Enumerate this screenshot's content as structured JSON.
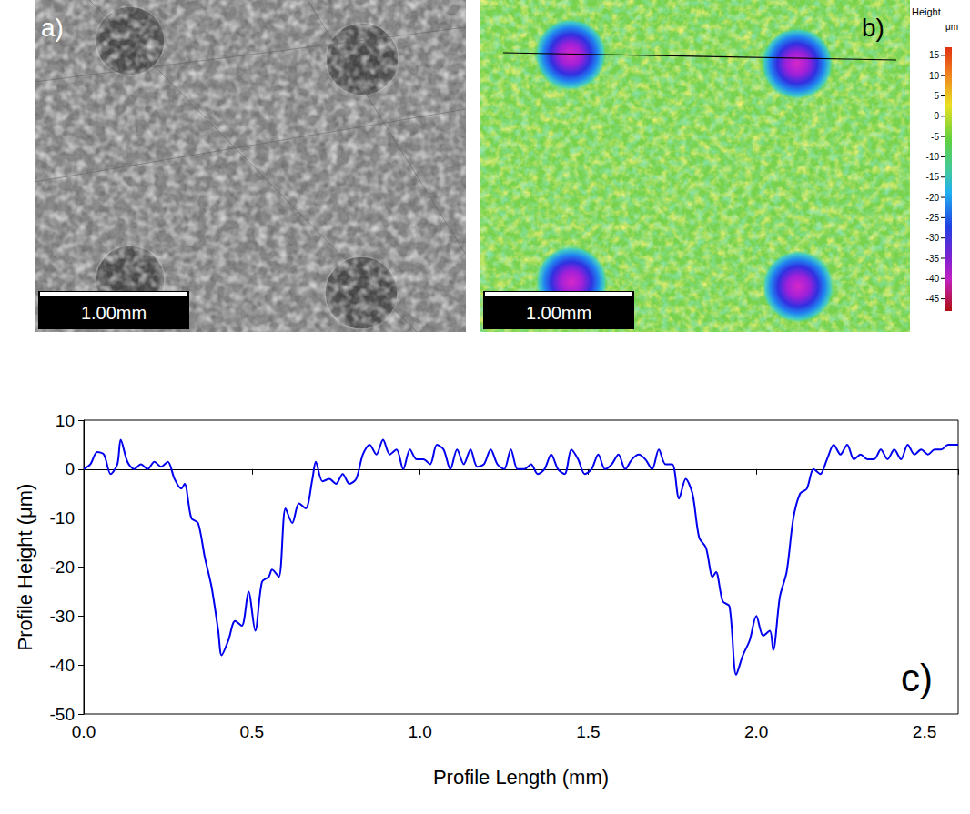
{
  "panels": [
    {
      "letter": "a)",
      "scale_bar": "1.00mm"
    },
    {
      "letter": "b)",
      "scale_bar": "1.00mm",
      "colorbar": {
        "title": "Height",
        "unit": "μm",
        "range": [
          -48,
          17
        ],
        "ticks": [
          15,
          10,
          5,
          0,
          -5,
          -10,
          -15,
          -20,
          -25,
          -30,
          -35,
          -40,
          -45
        ]
      }
    }
  ],
  "chart_data": {
    "type": "line",
    "panel_label": "c)",
    "x_label": "Profile Length (mm)",
    "y_label": "Profile Height (μm)",
    "xlim": [
      0,
      2.6
    ],
    "xticks": [
      {
        "value": 0,
        "label": "0.0"
      },
      0.5,
      {
        "value": 1,
        "label": "1.0"
      },
      1.5,
      {
        "value": 2,
        "label": "2.0"
      },
      2.5
    ],
    "ylim": [
      -50,
      10
    ],
    "yticks": [
      -50,
      -40,
      -30,
      -20,
      -10,
      0,
      10
    ],
    "grid": false,
    "color": "#0000ee",
    "x": [
      0.0,
      0.02,
      0.04,
      0.06,
      0.08,
      0.1,
      0.11,
      0.13,
      0.15,
      0.17,
      0.19,
      0.21,
      0.23,
      0.25,
      0.27,
      0.29,
      0.3,
      0.32,
      0.34,
      0.36,
      0.38,
      0.4,
      0.41,
      0.43,
      0.45,
      0.47,
      0.49,
      0.51,
      0.53,
      0.55,
      0.56,
      0.58,
      0.6,
      0.62,
      0.64,
      0.66,
      0.68,
      0.69,
      0.71,
      0.73,
      0.75,
      0.77,
      0.79,
      0.81,
      0.83,
      0.85,
      0.87,
      0.89,
      0.91,
      0.93,
      0.95,
      0.97,
      0.99,
      1.01,
      1.03,
      1.05,
      1.07,
      1.09,
      1.11,
      1.13,
      1.15,
      1.17,
      1.19,
      1.21,
      1.23,
      1.25,
      1.27,
      1.29,
      1.31,
      1.33,
      1.35,
      1.37,
      1.39,
      1.41,
      1.43,
      1.45,
      1.47,
      1.49,
      1.51,
      1.53,
      1.55,
      1.57,
      1.59,
      1.61,
      1.63,
      1.65,
      1.67,
      1.69,
      1.71,
      1.73,
      1.75,
      1.77,
      1.79,
      1.81,
      1.83,
      1.85,
      1.87,
      1.88,
      1.9,
      1.92,
      1.94,
      1.96,
      1.98,
      2.0,
      2.02,
      2.04,
      2.05,
      2.07,
      2.09,
      2.11,
      2.13,
      2.15,
      2.17,
      2.19,
      2.21,
      2.23,
      2.25,
      2.27,
      2.29,
      2.31,
      2.33,
      2.35,
      2.37,
      2.39,
      2.41,
      2.43,
      2.45,
      2.47,
      2.49,
      2.51,
      2.53,
      2.55,
      2.57,
      2.6
    ],
    "values": [
      0,
      1,
      3.5,
      3,
      -1,
      1,
      6,
      1.5,
      0,
      1,
      0,
      1.5,
      0.5,
      1.5,
      -2,
      -4,
      -3,
      -10,
      -11,
      -18,
      -24,
      -33,
      -38,
      -35,
      -31,
      -32,
      -25,
      -33,
      -23,
      -22,
      -20.5,
      -22,
      -8,
      -11,
      -7,
      -8,
      -2,
      1.5,
      -2.5,
      -2,
      -3,
      -1,
      -3,
      -2,
      3,
      5,
      3,
      6,
      3,
      4,
      0,
      4,
      2,
      2,
      1,
      5,
      4,
      0,
      4,
      1,
      4,
      0.5,
      1,
      4,
      1,
      0,
      4,
      0,
      0,
      1,
      -1,
      0,
      3,
      0,
      -1,
      4,
      2,
      -1,
      0,
      3,
      0,
      1,
      3,
      0,
      2,
      3,
      2,
      0,
      4,
      1,
      1,
      -6,
      -2,
      -5,
      -14,
      -16,
      -22,
      -21,
      -27,
      -28,
      -42,
      -38,
      -35,
      -30,
      -34,
      -33,
      -37,
      -26,
      -21,
      -10,
      -5,
      -4,
      0,
      -1,
      2,
      5,
      3,
      5,
      2,
      3,
      2,
      2,
      4,
      2,
      4,
      2,
      5,
      3,
      4,
      3,
      4,
      4,
      5,
      5
    ]
  }
}
